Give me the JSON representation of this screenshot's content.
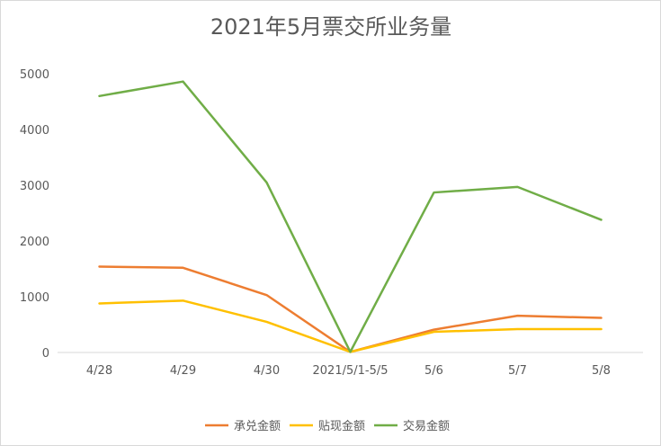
{
  "chart_data": {
    "type": "line",
    "title": "2021年5月票交所业务量",
    "xlabel": "",
    "ylabel": "",
    "categories": [
      "4/28",
      "4/29",
      "4/30",
      "2021/5/1-5/5",
      "5/6",
      "5/7",
      "5/8"
    ],
    "ylim": [
      0,
      5000
    ],
    "yticks": [
      0,
      1000,
      2000,
      3000,
      4000,
      5000
    ],
    "grid": false,
    "legend_position": "bottom",
    "series": [
      {
        "name": "承兑金额",
        "color": "#ed7d31",
        "values": [
          1540,
          1520,
          1030,
          10,
          410,
          660,
          620
        ]
      },
      {
        "name": "贴现金额",
        "color": "#ffc000",
        "values": [
          880,
          930,
          550,
          10,
          370,
          420,
          420
        ]
      },
      {
        "name": "交易金额",
        "color": "#70ad47",
        "values": [
          4600,
          4860,
          3050,
          10,
          2870,
          2970,
          2380
        ]
      }
    ]
  }
}
